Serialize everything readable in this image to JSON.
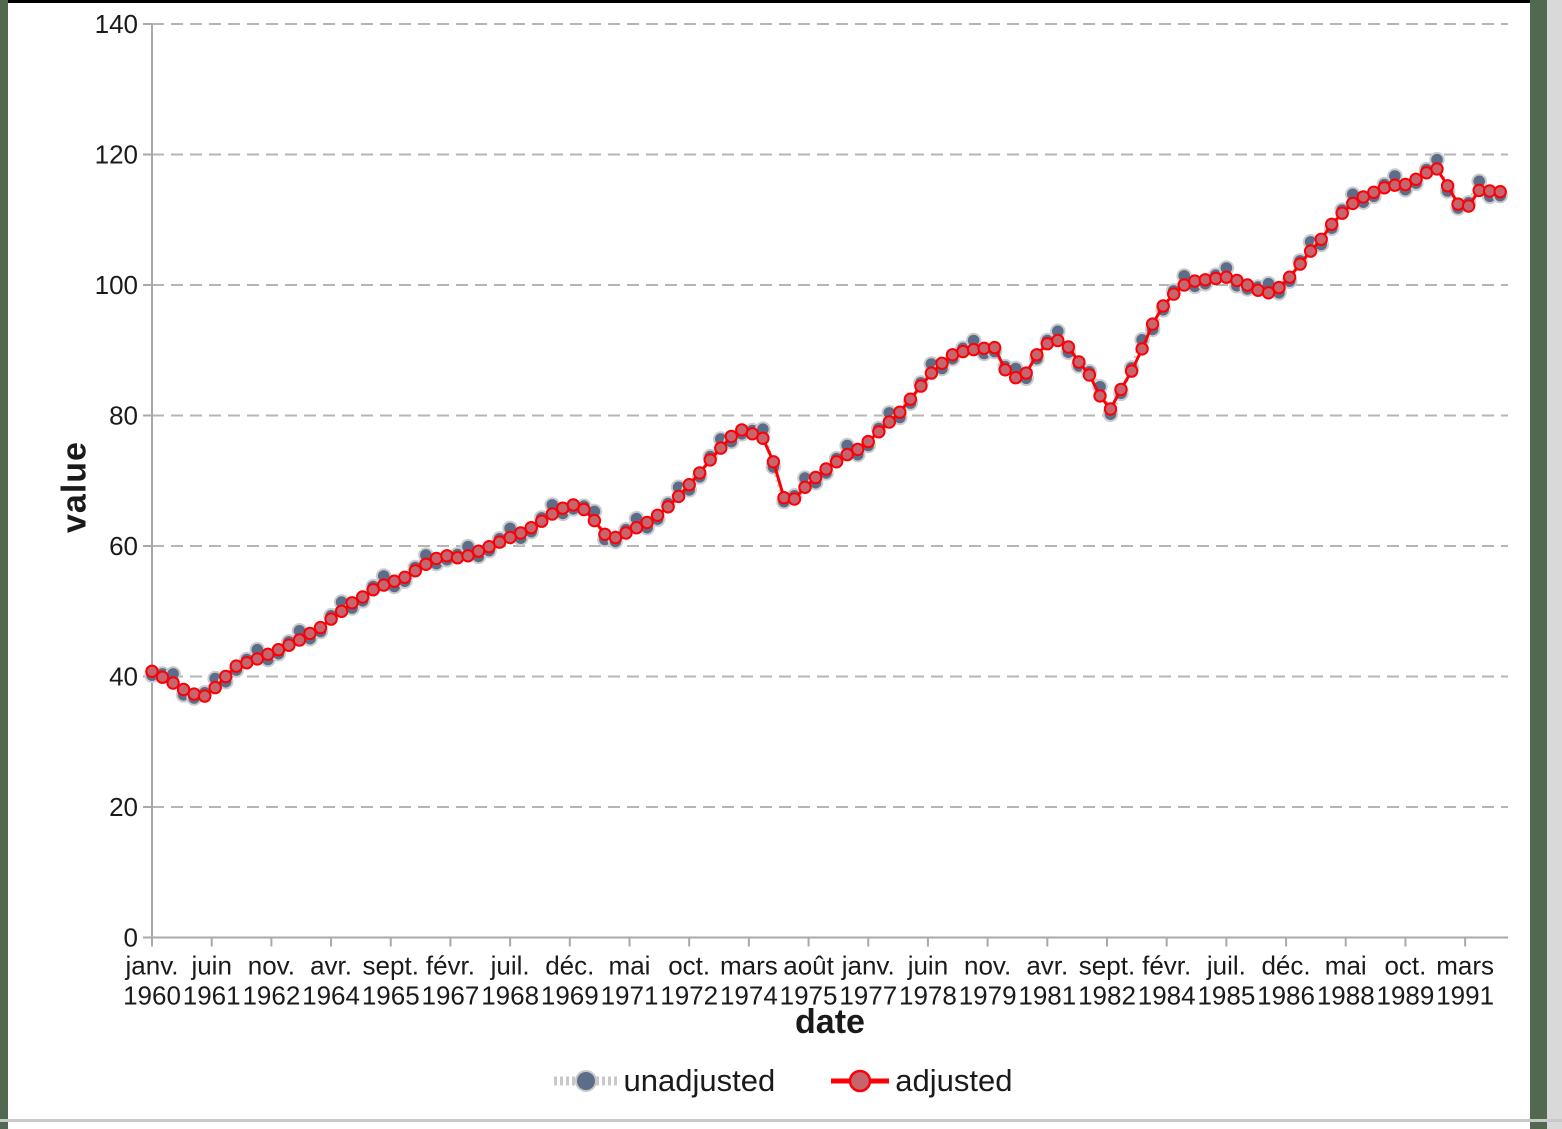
{
  "page": {
    "background": "#ffffff",
    "border_colors": {
      "top": "#000000",
      "side_green": "#50694f",
      "right_gray": "#d9d9d9",
      "bottom_gray": "#c9c9c9"
    }
  },
  "chart_data": {
    "type": "line",
    "title": "",
    "xlabel": "date",
    "ylabel": "value",
    "grid": "horizontal dashed gridlines on, vertical off",
    "y_axis": {
      "min": 0,
      "max": 140,
      "tick_step": 20,
      "ticks": [
        0,
        20,
        40,
        60,
        80,
        100,
        120,
        140
      ]
    },
    "x_axis": {
      "tick_interval_months": 17,
      "tick_labels": [
        {
          "month": "janv.",
          "year": "1960"
        },
        {
          "month": "juin",
          "year": "1961"
        },
        {
          "month": "nov.",
          "year": "1962"
        },
        {
          "month": "avr.",
          "year": "1964"
        },
        {
          "month": "sept.",
          "year": "1965"
        },
        {
          "month": "févr.",
          "year": "1967"
        },
        {
          "month": "juil.",
          "year": "1968"
        },
        {
          "month": "déc.",
          "year": "1969"
        },
        {
          "month": "mai",
          "year": "1971"
        },
        {
          "month": "oct.",
          "year": "1972"
        },
        {
          "month": "mars",
          "year": "1974"
        },
        {
          "month": "août",
          "year": "1975"
        },
        {
          "month": "janv.",
          "year": "1977"
        },
        {
          "month": "juin",
          "year": "1978"
        },
        {
          "month": "nov.",
          "year": "1979"
        },
        {
          "month": "avr.",
          "year": "1981"
        },
        {
          "month": "sept.",
          "year": "1982"
        },
        {
          "month": "févr.",
          "year": "1984"
        },
        {
          "month": "juil.",
          "year": "1985"
        },
        {
          "month": "déc.",
          "year": "1986"
        },
        {
          "month": "mai",
          "year": "1988"
        },
        {
          "month": "oct.",
          "year": "1989"
        },
        {
          "month": "mars",
          "year": "1991"
        }
      ]
    },
    "legend": {
      "position": "bottom-center",
      "entries": [
        {
          "label": "unadjusted",
          "marker": "circle",
          "marker_color": "#5c6d89",
          "line_color": "#c9c9c9"
        },
        {
          "label": "adjusted",
          "marker": "circle",
          "marker_color": "#c5666e",
          "line_color": "#fb0006"
        }
      ]
    },
    "frequency": "quarterly",
    "periods": [
      "1960Q1",
      "1960Q2",
      "1960Q3",
      "1960Q4",
      "1961Q1",
      "1961Q2",
      "1961Q3",
      "1961Q4",
      "1962Q1",
      "1962Q2",
      "1962Q3",
      "1962Q4",
      "1963Q1",
      "1963Q2",
      "1963Q3",
      "1963Q4",
      "1964Q1",
      "1964Q2",
      "1964Q3",
      "1964Q4",
      "1965Q1",
      "1965Q2",
      "1965Q3",
      "1965Q4",
      "1966Q1",
      "1966Q2",
      "1966Q3",
      "1966Q4",
      "1967Q1",
      "1967Q2",
      "1967Q3",
      "1967Q4",
      "1968Q1",
      "1968Q2",
      "1968Q3",
      "1968Q4",
      "1969Q1",
      "1969Q2",
      "1969Q3",
      "1969Q4",
      "1970Q1",
      "1970Q2",
      "1970Q3",
      "1970Q4",
      "1971Q1",
      "1971Q2",
      "1971Q3",
      "1971Q4",
      "1972Q1",
      "1972Q2",
      "1972Q3",
      "1972Q4",
      "1973Q1",
      "1973Q2",
      "1973Q3",
      "1973Q4",
      "1974Q1",
      "1974Q2",
      "1974Q3",
      "1974Q4",
      "1975Q1",
      "1975Q2",
      "1975Q3",
      "1975Q4",
      "1976Q1",
      "1976Q2",
      "1976Q3",
      "1976Q4",
      "1977Q1",
      "1977Q2",
      "1977Q3",
      "1977Q4",
      "1978Q1",
      "1978Q2",
      "1978Q3",
      "1978Q4",
      "1979Q1",
      "1979Q2",
      "1979Q3",
      "1979Q4",
      "1980Q1",
      "1980Q2",
      "1980Q3",
      "1980Q4",
      "1981Q1",
      "1981Q2",
      "1981Q3",
      "1981Q4",
      "1982Q1",
      "1982Q2",
      "1982Q3",
      "1982Q4",
      "1983Q1",
      "1983Q2",
      "1983Q3",
      "1983Q4",
      "1984Q1",
      "1984Q2",
      "1984Q3",
      "1984Q4",
      "1985Q1",
      "1985Q2",
      "1985Q3",
      "1985Q4",
      "1986Q1",
      "1986Q2",
      "1986Q3",
      "1986Q4",
      "1987Q1",
      "1987Q2",
      "1987Q3",
      "1987Q4",
      "1988Q1",
      "1988Q2",
      "1988Q3",
      "1988Q4",
      "1989Q1",
      "1989Q2",
      "1989Q3",
      "1989Q4",
      "1990Q1",
      "1990Q2",
      "1990Q3",
      "1990Q4",
      "1991Q1",
      "1991Q2",
      "1991Q3",
      "1991Q4",
      "1992Q1"
    ],
    "series": [
      {
        "name": "unadjusted",
        "line_color": "#c9c9c9",
        "marker_fill": "#5c6d89",
        "marker_stroke": "#cccccc",
        "values": [
          40.2,
          40.4,
          40.4,
          37.2,
          36.7,
          37.5,
          39.7,
          39.2,
          41.0,
          42.6,
          44.1,
          42.6,
          43.5,
          45.3,
          47.0,
          45.8,
          46.9,
          49.3,
          51.4,
          50.5,
          51.6,
          53.8,
          55.4,
          53.8,
          54.6,
          56.7,
          58.6,
          57.3,
          57.9,
          58.7,
          59.9,
          58.4,
          59.3,
          61.1,
          62.7,
          61.2,
          62.2,
          64.3,
          66.3,
          65.0,
          65.7,
          66.1,
          65.3,
          61.0,
          60.7,
          62.5,
          64.2,
          62.8,
          64.1,
          66.5,
          69.0,
          68.6,
          70.6,
          73.7,
          76.4,
          76.0,
          77.2,
          77.7,
          77.9,
          72.1,
          66.8,
          67.7,
          70.4,
          69.7,
          71.2,
          73.4,
          75.4,
          74.0,
          75.4,
          78.0,
          80.4,
          79.7,
          81.9,
          85.0,
          87.9,
          87.2,
          88.7,
          90.3,
          91.5,
          89.5,
          89.8,
          87.5,
          87.2,
          85.7,
          88.7,
          91.5,
          92.9,
          89.7,
          87.6,
          86.7,
          84.4,
          80.2,
          83.4,
          87.3,
          91.6,
          93.2,
          96.2,
          99.1,
          101.4,
          99.8,
          100.2,
          101.5,
          102.6,
          99.9,
          99.4,
          99.7,
          100.2,
          98.8,
          100.6,
          103.7,
          106.6,
          106.2,
          108.7,
          111.5,
          113.9,
          112.7,
          113.6,
          115.4,
          116.7,
          114.6,
          115.6,
          117.7,
          119.2,
          114.4,
          111.8,
          112.6,
          115.9,
          113.6,
          113.7
        ]
      },
      {
        "name": "adjusted",
        "line_color": "#fb0006",
        "marker_fill": "#c5666e",
        "marker_stroke": "#fb0006",
        "values": [
          40.8,
          39.9,
          39.0,
          38.0,
          37.3,
          37.0,
          38.3,
          40.0,
          41.6,
          42.1,
          42.7,
          43.4,
          44.1,
          44.8,
          45.6,
          46.6,
          47.5,
          48.8,
          50.0,
          51.3,
          52.2,
          53.3,
          54.0,
          54.6,
          55.2,
          56.2,
          57.2,
          58.1,
          58.5,
          58.2,
          58.5,
          59.2,
          59.9,
          60.6,
          61.3,
          62.0,
          62.8,
          63.8,
          64.9,
          65.8,
          66.3,
          65.6,
          63.9,
          61.8,
          61.3,
          62.0,
          62.8,
          63.6,
          64.7,
          66.0,
          67.6,
          69.4,
          71.2,
          73.2,
          75.0,
          76.8,
          77.8,
          77.2,
          76.5,
          72.9,
          67.4,
          67.2,
          69.0,
          70.5,
          71.8,
          72.9,
          74.0,
          74.8,
          76.0,
          77.5,
          79.0,
          80.5,
          82.5,
          84.5,
          86.5,
          88.0,
          89.3,
          89.8,
          90.1,
          90.3,
          90.4,
          87.0,
          85.8,
          86.5,
          89.3,
          91.0,
          91.5,
          90.5,
          88.2,
          86.2,
          83.0,
          81.0,
          84.0,
          86.8,
          90.2,
          94.0,
          96.8,
          98.6,
          100.0,
          100.6,
          100.8,
          101.0,
          101.2,
          100.7,
          100.0,
          99.2,
          98.8,
          99.6,
          101.2,
          103.2,
          105.2,
          107.0,
          109.3,
          111.0,
          112.5,
          113.5,
          114.2,
          114.9,
          115.3,
          115.4,
          116.2,
          117.2,
          117.8,
          115.2,
          112.4,
          112.1,
          114.5,
          114.4,
          114.3
        ]
      }
    ],
    "axis_color": "#a9a9a9",
    "gridline_color": "#b5b5b5",
    "text_color": "#1a1a1a"
  }
}
